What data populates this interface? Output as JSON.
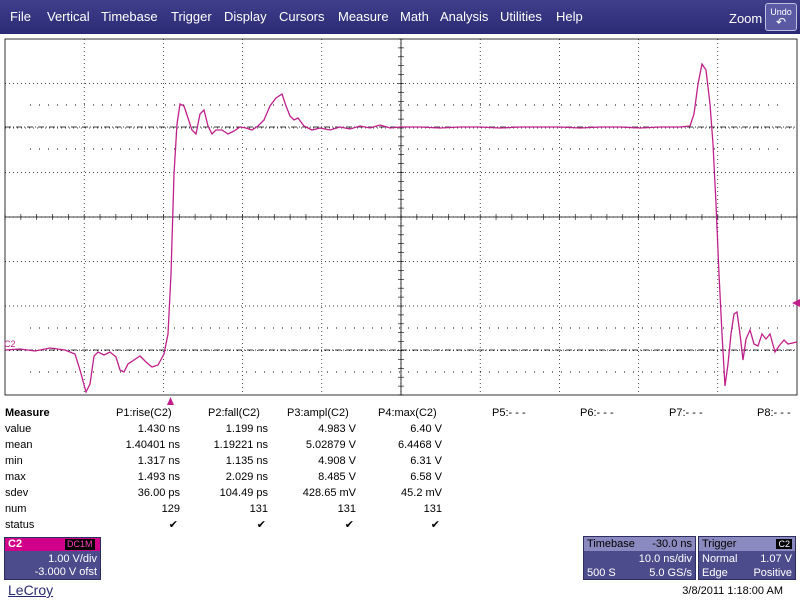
{
  "menu": {
    "items": [
      "File",
      "Vertical",
      "Timebase",
      "Trigger",
      "Display",
      "Cursors",
      "Measure",
      "Math",
      "Analysis",
      "Utilities",
      "Help"
    ],
    "zoom_label": "Zoom",
    "undo_label": "Undo"
  },
  "waveform": {
    "channel_label": "C2",
    "color": "#c0208c",
    "grid_color": "#000000"
  },
  "measure": {
    "title": "Measure",
    "row_labels": [
      "value",
      "mean",
      "min",
      "max",
      "sdev",
      "num",
      "status"
    ],
    "params": [
      {
        "header": "P1:rise(C2)",
        "values": [
          "1.430 ns",
          "1.40401 ns",
          "1.317 ns",
          "1.493 ns",
          "36.00 ps",
          "129"
        ]
      },
      {
        "header": "P2:fall(C2)",
        "values": [
          "1.199 ns",
          "1.19221 ns",
          "1.135 ns",
          "2.029 ns",
          "104.49 ps",
          "131"
        ]
      },
      {
        "header": "P3:ampl(C2)",
        "values": [
          "4.983 V",
          "5.02879 V",
          "4.908 V",
          "8.485 V",
          "428.65 mV",
          "131"
        ]
      },
      {
        "header": "P4:max(C2)",
        "values": [
          "6.40 V",
          "6.4468 V",
          "6.31 V",
          "6.58 V",
          "45.2 mV",
          "131"
        ]
      },
      {
        "header": "P5:- - -",
        "values": []
      },
      {
        "header": "P6:- - -",
        "values": []
      },
      {
        "header": "P7:- - -",
        "values": []
      },
      {
        "header": "P8:- - -",
        "values": []
      }
    ],
    "status_mark": "✔"
  },
  "channel_box": {
    "name": "C2",
    "coupling": "DC1M",
    "vdiv": "1.00 V/div",
    "offset": "-3.000 V ofst",
    "color": "#d0008a"
  },
  "timebase": {
    "title": "Timebase",
    "delay": "-30.0 ns",
    "tdiv": "10.0 ns/div",
    "samples": "500 S",
    "rate": "5.0 GS/s"
  },
  "trigger": {
    "title": "Trigger",
    "source": "C2",
    "mode": "Normal",
    "level": "1.07 V",
    "type": "Edge",
    "slope": "Positive"
  },
  "footer": {
    "logo": "LeCroy",
    "datetime": "3/8/2011 1:18:00 AM"
  }
}
